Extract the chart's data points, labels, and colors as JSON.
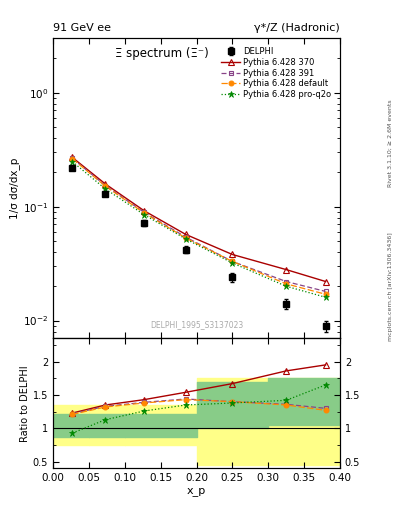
{
  "title_left": "91 GeV ee",
  "title_right": "γ*/Z (Hadronic)",
  "right_label_top": "Rivet 3.1.10; ≥ 2.6M events",
  "right_label_bottom": "mcplots.cern.ch [arXiv:1306.3436]",
  "watermark": "DELPHI_1995_S3137023",
  "plot_title": "Ξ spectrum (Ξ⁻)",
  "ylabel_main": "1/σ dσ/dx_p",
  "ylabel_ratio": "Ratio to DELPHI",
  "xlabel": "x_p",
  "xp_data": [
    0.027,
    0.073,
    0.127,
    0.185,
    0.25,
    0.325,
    0.38
  ],
  "delphi_y": [
    0.22,
    0.13,
    0.072,
    0.042,
    0.024,
    0.014,
    0.009
  ],
  "delphi_yerr": [
    0.012,
    0.007,
    0.004,
    0.003,
    0.002,
    0.0015,
    0.001
  ],
  "py370_y": [
    0.27,
    0.158,
    0.092,
    0.057,
    0.038,
    0.028,
    0.022
  ],
  "py391_y": [
    0.265,
    0.153,
    0.089,
    0.054,
    0.033,
    0.022,
    0.018
  ],
  "pydef_y": [
    0.263,
    0.151,
    0.088,
    0.053,
    0.033,
    0.021,
    0.017
  ],
  "pyproq2o_y": [
    0.248,
    0.143,
    0.085,
    0.052,
    0.032,
    0.02,
    0.016
  ],
  "ratio_py370": [
    1.23,
    1.35,
    1.43,
    1.54,
    1.67,
    1.86,
    1.95
  ],
  "ratio_py391": [
    1.22,
    1.33,
    1.39,
    1.44,
    1.4,
    1.36,
    1.3
  ],
  "ratio_pydef": [
    1.21,
    1.32,
    1.38,
    1.43,
    1.4,
    1.35,
    1.27
  ],
  "ratio_pyproq2o": [
    0.93,
    1.13,
    1.26,
    1.35,
    1.38,
    1.42,
    1.65
  ],
  "yellow_band_edges": [
    0.0,
    0.05,
    0.1,
    0.2,
    0.3,
    0.4
  ],
  "yellow_band_lo": [
    0.75,
    0.75,
    0.75,
    0.45,
    0.45,
    0.45
  ],
  "yellow_band_hi": [
    1.35,
    1.35,
    1.35,
    1.75,
    1.75,
    1.75
  ],
  "green_band_edges": [
    0.0,
    0.05,
    0.1,
    0.2,
    0.3,
    0.4
  ],
  "green_band_lo": [
    0.87,
    0.87,
    0.87,
    1.0,
    1.05,
    1.05
  ],
  "green_band_hi": [
    1.22,
    1.22,
    1.22,
    1.7,
    1.75,
    1.75
  ],
  "color_py370": "#aa0000",
  "color_py391": "#884488",
  "color_pydef": "#ff8800",
  "color_pyproq2o": "#008800",
  "main_ylim_lo": 0.007,
  "main_ylim_hi": 3.0,
  "ratio_ylim_lo": 0.4,
  "ratio_ylim_hi": 2.35,
  "xlim_lo": 0.0,
  "xlim_hi": 0.4
}
